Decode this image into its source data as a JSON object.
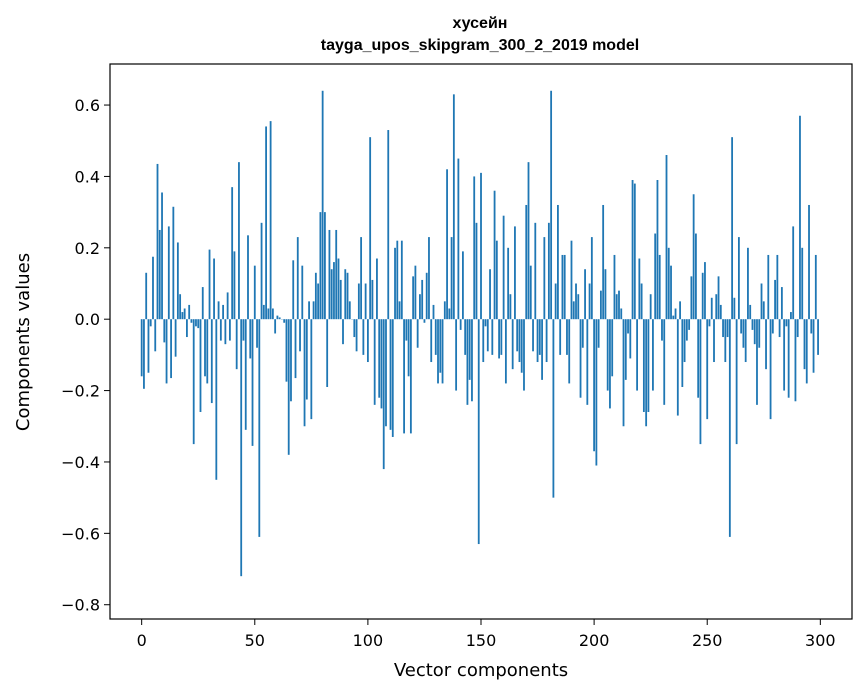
{
  "chart_data": {
    "type": "bar",
    "title": "хусейн",
    "subtitle": "tayga_upos_skipgram_300_2_2019 model",
    "xlabel": "Vector components",
    "ylabel": "Components values",
    "xlim": [
      -14,
      314
    ],
    "ylim": [
      -0.84,
      0.715
    ],
    "xticks": [
      0,
      50,
      100,
      150,
      200,
      250,
      300
    ],
    "xtick_labels": [
      "0",
      "50",
      "100",
      "150",
      "200",
      "250",
      "300"
    ],
    "yticks": [
      -0.8,
      -0.6,
      -0.4,
      -0.2,
      0.0,
      0.2,
      0.4,
      0.6
    ],
    "ytick_labels": [
      "−0.8",
      "−0.6",
      "−0.4",
      "−0.2",
      "0.0",
      "0.2",
      "0.4",
      "0.6"
    ],
    "bar_color": "#1f77b4",
    "x": "indices 0..299",
    "values": [
      -0.16,
      -0.195,
      0.13,
      -0.15,
      -0.02,
      0.175,
      -0.09,
      0.435,
      0.25,
      0.355,
      -0.065,
      -0.18,
      0.26,
      -0.165,
      0.315,
      -0.105,
      0.215,
      0.07,
      0.02,
      0.03,
      -0.05,
      0.04,
      -0.01,
      -0.35,
      -0.02,
      -0.025,
      -0.26,
      0.09,
      -0.16,
      -0.18,
      0.195,
      -0.235,
      0.17,
      -0.45,
      0.05,
      -0.06,
      0.04,
      -0.07,
      0.075,
      -0.06,
      0.37,
      0.19,
      -0.14,
      0.44,
      -0.72,
      -0.06,
      -0.31,
      0.235,
      -0.11,
      -0.355,
      0.15,
      -0.08,
      -0.61,
      0.27,
      0.04,
      0.54,
      0.03,
      0.555,
      0.03,
      -0.04,
      0.01,
      0.005,
      0.0,
      -0.01,
      -0.175,
      -0.38,
      -0.23,
      0.165,
      -0.165,
      0.23,
      -0.09,
      0.15,
      -0.3,
      -0.225,
      0.05,
      -0.28,
      0.05,
      0.13,
      0.1,
      0.3,
      0.64,
      0.3,
      -0.19,
      0.25,
      0.14,
      0.16,
      0.25,
      0.17,
      0.11,
      -0.07,
      0.14,
      0.13,
      0.05,
      0.0,
      -0.05,
      -0.09,
      0.1,
      0.23,
      -0.1,
      0.1,
      -0.12,
      0.51,
      0.11,
      -0.24,
      0.17,
      -0.22,
      -0.25,
      -0.42,
      -0.3,
      0.53,
      -0.31,
      -0.33,
      0.2,
      0.22,
      0.05,
      0.22,
      -0.32,
      -0.06,
      -0.16,
      -0.32,
      0.12,
      0.15,
      -0.08,
      0.07,
      0.11,
      -0.01,
      0.13,
      0.23,
      -0.12,
      0.04,
      -0.1,
      -0.18,
      -0.15,
      -0.18,
      0.05,
      0.42,
      0.03,
      0.23,
      0.63,
      -0.2,
      0.45,
      -0.03,
      0.19,
      -0.1,
      -0.24,
      -0.17,
      -0.23,
      0.4,
      0.27,
      -0.63,
      0.41,
      -0.12,
      -0.02,
      -0.09,
      0.14,
      -0.1,
      0.36,
      0.22,
      -0.11,
      -0.1,
      0.29,
      -0.18,
      0.2,
      0.07,
      -0.14,
      0.26,
      -0.09,
      -0.12,
      -0.15,
      -0.2,
      0.32,
      0.44,
      0.15,
      -0.09,
      0.27,
      -0.12,
      -0.1,
      -0.17,
      0.23,
      -0.12,
      0.27,
      0.64,
      -0.5,
      0.1,
      0.32,
      -0.1,
      0.18,
      0.18,
      -0.1,
      -0.18,
      0.22,
      0.05,
      0.1,
      0.07,
      -0.22,
      -0.08,
      0.14,
      -0.24,
      0.1,
      0.23,
      -0.37,
      -0.41,
      -0.08,
      0.08,
      0.32,
      0.14,
      -0.2,
      -0.25,
      -0.16,
      0.18,
      0.07,
      0.08,
      0.03,
      -0.3,
      -0.17,
      -0.04,
      -0.11,
      0.39,
      0.38,
      -0.2,
      0.17,
      0.1,
      -0.26,
      -0.3,
      -0.26,
      0.07,
      -0.2,
      0.24,
      0.39,
      0.18,
      -0.06,
      -0.24,
      0.46,
      0.2,
      0.15,
      0.01,
      0.03,
      -0.27,
      0.05,
      -0.19,
      -0.12,
      -0.06,
      -0.03,
      0.12,
      0.35,
      0.24,
      -0.22,
      -0.35,
      0.13,
      0.16,
      -0.28,
      -0.02,
      0.06,
      -0.12,
      0.07,
      0.12,
      0.04,
      -0.05,
      -0.12,
      -0.05,
      -0.61,
      0.51,
      0.06,
      -0.35,
      0.23,
      -0.04,
      -0.08,
      -0.12,
      0.2,
      0.04,
      -0.03,
      -0.07,
      -0.24,
      -0.08,
      0.1,
      0.05,
      -0.14,
      0.18,
      -0.28,
      -0.04,
      0.11,
      0.18,
      -0.05,
      0.09,
      -0.2,
      -0.02,
      -0.22,
      0.02,
      0.26,
      -0.23,
      -0.05,
      0.57,
      0.2,
      -0.14,
      -0.18,
      0.32,
      -0.04,
      -0.15,
      0.18,
      -0.1
    ]
  }
}
